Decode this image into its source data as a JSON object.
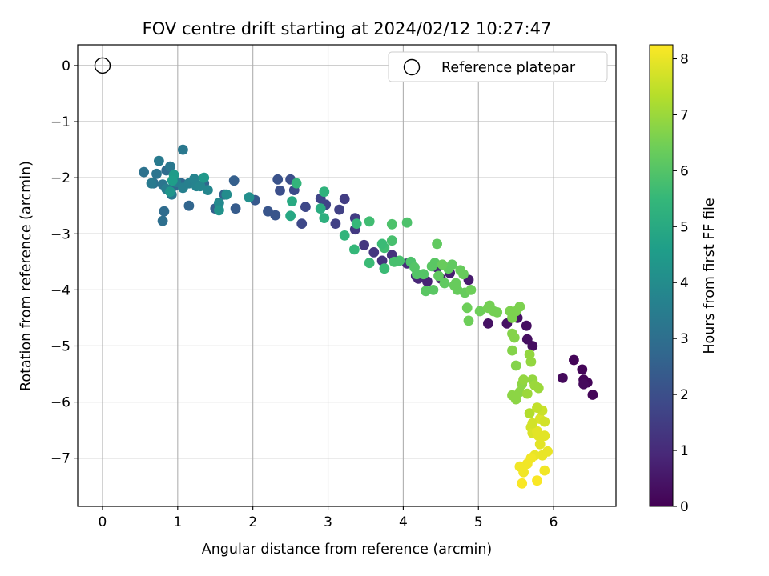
{
  "chart_data": {
    "type": "scatter",
    "title": "FOV centre drift starting at 2024/02/12 10:27:47",
    "xlabel": "Angular distance from reference (arcmin)",
    "ylabel": "Rotation from reference (arcmin)",
    "xlim": [
      -0.33,
      6.83
    ],
    "ylim": [
      -7.86,
      0.37
    ],
    "xticks": [
      0,
      1,
      2,
      3,
      4,
      5,
      6
    ],
    "yticks": [
      0,
      -1,
      -2,
      -3,
      -4,
      -5,
      -6,
      -7
    ],
    "xtick_labels": [
      "0",
      "1",
      "2",
      "3",
      "4",
      "5",
      "6"
    ],
    "ytick_labels": [
      "0",
      "−1",
      "−2",
      "−3",
      "−4",
      "−5",
      "−6",
      "−7"
    ],
    "grid": true,
    "legend": {
      "placement": "top-right",
      "entries": [
        "Reference platepar"
      ]
    },
    "reference_point": {
      "x": 0,
      "y": 0
    },
    "colorbar": {
      "label": "Hours from first FF file",
      "range": [
        0,
        8.25
      ],
      "ticks": [
        0,
        1,
        2,
        3,
        4,
        5,
        6,
        7,
        8
      ],
      "tick_labels": [
        "0",
        "1",
        "2",
        "3",
        "4",
        "5",
        "6",
        "7",
        "8"
      ],
      "colormap": [
        "#440154",
        "#482878",
        "#3e4989",
        "#31688e",
        "#26828e",
        "#1f9e89",
        "#35b779",
        "#6ece58",
        "#b5de2b",
        "#fde725"
      ]
    },
    "points": [
      [
        6.52,
        -5.87,
        0.1
      ],
      [
        6.45,
        -5.65,
        0.1
      ],
      [
        6.4,
        -5.6,
        0.1
      ],
      [
        6.4,
        -5.68,
        0.2
      ],
      [
        6.38,
        -5.42,
        0.1
      ],
      [
        6.27,
        -5.25,
        0.1
      ],
      [
        6.12,
        -5.57,
        0.2
      ],
      [
        5.72,
        -5.0,
        0.3
      ],
      [
        5.65,
        -4.88,
        0.3
      ],
      [
        5.64,
        -4.64,
        0.3
      ],
      [
        5.52,
        -4.5,
        0.4
      ],
      [
        5.38,
        -4.6,
        0.4
      ],
      [
        5.13,
        -4.6,
        0.4
      ],
      [
        4.87,
        -3.82,
        0.6
      ],
      [
        4.62,
        -3.7,
        0.7
      ],
      [
        4.5,
        -3.8,
        0.7
      ],
      [
        4.45,
        -3.6,
        0.8
      ],
      [
        4.32,
        -3.85,
        0.8
      ],
      [
        4.2,
        -3.8,
        0.9
      ],
      [
        4.17,
        -3.75,
        0.9
      ],
      [
        4.05,
        -3.53,
        1.0
      ],
      [
        3.85,
        -3.38,
        1.2
      ],
      [
        3.72,
        -3.48,
        1.2
      ],
      [
        3.61,
        -3.33,
        1.3
      ],
      [
        3.48,
        -3.2,
        1.3
      ],
      [
        3.36,
        -2.92,
        1.4
      ],
      [
        3.36,
        -2.72,
        1.5
      ],
      [
        3.22,
        -2.38,
        1.5
      ],
      [
        3.15,
        -2.57,
        1.6
      ],
      [
        3.1,
        -2.82,
        1.6
      ],
      [
        2.97,
        -2.48,
        1.7
      ],
      [
        2.9,
        -2.37,
        1.7
      ],
      [
        2.65,
        -2.82,
        1.8
      ],
      [
        2.7,
        -2.52,
        1.8
      ],
      [
        2.55,
        -2.22,
        1.9
      ],
      [
        2.5,
        -2.03,
        2.0
      ],
      [
        2.36,
        -2.23,
        2.0
      ],
      [
        2.33,
        -2.03,
        2.1
      ],
      [
        2.2,
        -2.6,
        2.2
      ],
      [
        2.3,
        -2.67,
        2.2
      ],
      [
        2.03,
        -2.4,
        2.3
      ],
      [
        1.77,
        -2.55,
        2.4
      ],
      [
        1.75,
        -2.05,
        2.5
      ],
      [
        1.5,
        -2.55,
        2.5
      ],
      [
        1.62,
        -2.3,
        2.6
      ],
      [
        1.35,
        -2.1,
        2.7
      ],
      [
        1.15,
        -2.5,
        2.7
      ],
      [
        1.05,
        -2.1,
        2.8
      ],
      [
        0.95,
        -2.15,
        2.8
      ],
      [
        0.85,
        -1.87,
        2.9
      ],
      [
        0.82,
        -2.6,
        2.9
      ],
      [
        0.8,
        -2.77,
        3.0
      ],
      [
        0.55,
        -1.9,
        3.1
      ],
      [
        0.68,
        -2.1,
        3.1
      ],
      [
        0.72,
        -1.93,
        3.2
      ],
      [
        0.8,
        -2.12,
        3.2
      ],
      [
        0.92,
        -2.3,
        3.3
      ],
      [
        0.9,
        -1.8,
        3.3
      ],
      [
        1.07,
        -1.5,
        3.3
      ],
      [
        0.75,
        -1.7,
        3.4
      ],
      [
        0.65,
        -2.1,
        3.4
      ],
      [
        0.85,
        -2.2,
        3.5
      ],
      [
        0.98,
        -2.08,
        3.5
      ],
      [
        1.07,
        -2.18,
        3.6
      ],
      [
        1.15,
        -2.1,
        3.6
      ],
      [
        1.22,
        -2.02,
        3.7
      ],
      [
        1.25,
        -2.15,
        3.7
      ],
      [
        1.3,
        -2.15,
        3.8
      ],
      [
        1.4,
        -2.22,
        3.8
      ],
      [
        1.55,
        -2.45,
        3.9
      ],
      [
        1.65,
        -2.3,
        4.0
      ],
      [
        1.95,
        -2.35,
        4.1
      ],
      [
        1.55,
        -2.58,
        4.2
      ],
      [
        1.35,
        -2.0,
        4.4
      ],
      [
        0.9,
        -2.25,
        4.3
      ],
      [
        0.95,
        -1.95,
        4.5
      ],
      [
        0.93,
        -2.05,
        4.6
      ],
      [
        2.5,
        -2.68,
        4.9
      ],
      [
        2.52,
        -2.42,
        5.0
      ],
      [
        2.9,
        -2.55,
        5.1
      ],
      [
        2.95,
        -2.72,
        5.2
      ],
      [
        2.95,
        -2.25,
        5.3
      ],
      [
        2.58,
        -2.1,
        5.4
      ],
      [
        3.22,
        -3.03,
        5.4
      ],
      [
        3.35,
        -3.28,
        5.5
      ],
      [
        3.38,
        -2.82,
        5.5
      ],
      [
        3.55,
        -3.52,
        5.6
      ],
      [
        3.55,
        -2.78,
        5.7
      ],
      [
        3.75,
        -3.62,
        5.6
      ],
      [
        3.85,
        -3.12,
        5.8
      ],
      [
        3.75,
        -3.25,
        5.7
      ],
      [
        3.72,
        -3.18,
        5.6
      ],
      [
        3.88,
        -3.5,
        5.8
      ],
      [
        3.95,
        -3.48,
        5.8
      ],
      [
        3.85,
        -2.83,
        5.9
      ],
      [
        4.05,
        -2.8,
        5.9
      ],
      [
        4.1,
        -3.5,
        5.9
      ],
      [
        4.15,
        -3.6,
        6.0
      ],
      [
        4.18,
        -3.72,
        6.0
      ],
      [
        4.27,
        -3.72,
        6.0
      ],
      [
        4.3,
        -4.02,
        6.1
      ],
      [
        4.38,
        -3.58,
        6.1
      ],
      [
        4.4,
        -4.0,
        6.1
      ],
      [
        4.42,
        -3.52,
        6.1
      ],
      [
        4.45,
        -3.18,
        6.2
      ],
      [
        4.47,
        -3.75,
        6.2
      ],
      [
        4.55,
        -3.88,
        6.2
      ],
      [
        4.6,
        -3.62,
        6.2
      ],
      [
        4.65,
        -3.55,
        6.2
      ],
      [
        4.7,
        -3.88,
        6.3
      ],
      [
        4.72,
        -4.0,
        6.3
      ],
      [
        4.76,
        -3.65,
        6.3
      ],
      [
        4.8,
        -3.72,
        6.3
      ],
      [
        4.82,
        -4.05,
        6.3
      ],
      [
        4.85,
        -4.32,
        6.4
      ],
      [
        4.87,
        -4.55,
        6.4
      ],
      [
        4.9,
        -4.0,
        6.4
      ],
      [
        4.52,
        -3.55,
        6.3
      ],
      [
        4.68,
        -3.92,
        6.3
      ],
      [
        5.02,
        -4.38,
        6.4
      ],
      [
        5.13,
        -4.32,
        6.5
      ],
      [
        5.15,
        -4.28,
        6.5
      ],
      [
        5.2,
        -4.38,
        6.5
      ],
      [
        5.25,
        -4.4,
        6.5
      ],
      [
        5.42,
        -4.38,
        6.6
      ],
      [
        5.45,
        -4.5,
        6.6
      ],
      [
        5.5,
        -4.38,
        6.6
      ],
      [
        5.55,
        -4.3,
        6.6
      ],
      [
        5.45,
        -4.78,
        6.7
      ],
      [
        5.48,
        -4.85,
        6.7
      ],
      [
        5.45,
        -5.08,
        6.7
      ],
      [
        5.5,
        -5.35,
        6.7
      ],
      [
        5.45,
        -5.88,
        6.8
      ],
      [
        5.5,
        -5.95,
        6.8
      ],
      [
        5.55,
        -5.82,
        6.8
      ],
      [
        5.58,
        -5.68,
        6.8
      ],
      [
        5.6,
        -5.6,
        6.9
      ],
      [
        5.68,
        -5.15,
        6.9
      ],
      [
        5.7,
        -5.28,
        6.9
      ],
      [
        5.72,
        -5.6,
        6.9
      ],
      [
        5.75,
        -5.7,
        7.0
      ],
      [
        5.8,
        -5.75,
        7.0
      ],
      [
        5.65,
        -5.85,
        7.0
      ],
      [
        5.68,
        -6.2,
        7.3
      ],
      [
        5.7,
        -6.45,
        7.7
      ],
      [
        5.72,
        -6.55,
        7.8
      ],
      [
        5.78,
        -6.52,
        7.9
      ],
      [
        5.8,
        -6.6,
        7.9
      ],
      [
        5.82,
        -6.3,
        7.8
      ],
      [
        5.88,
        -6.35,
        7.7
      ],
      [
        5.88,
        -6.6,
        7.9
      ],
      [
        5.85,
        -6.95,
        8.0
      ],
      [
        5.75,
        -6.95,
        8.0
      ],
      [
        5.7,
        -7.0,
        8.1
      ],
      [
        5.65,
        -7.1,
        8.1
      ],
      [
        5.6,
        -7.25,
        8.1
      ],
      [
        5.55,
        -7.15,
        8.1
      ],
      [
        5.58,
        -7.45,
        8.2
      ],
      [
        5.78,
        -7.4,
        8.2
      ],
      [
        5.88,
        -7.22,
        8.1
      ],
      [
        5.92,
        -6.88,
        8.0
      ],
      [
        5.82,
        -6.75,
        7.9
      ],
      [
        5.85,
        -6.15,
        7.6
      ],
      [
        5.78,
        -6.1,
        7.5
      ],
      [
        5.72,
        -6.38,
        7.7
      ]
    ]
  }
}
